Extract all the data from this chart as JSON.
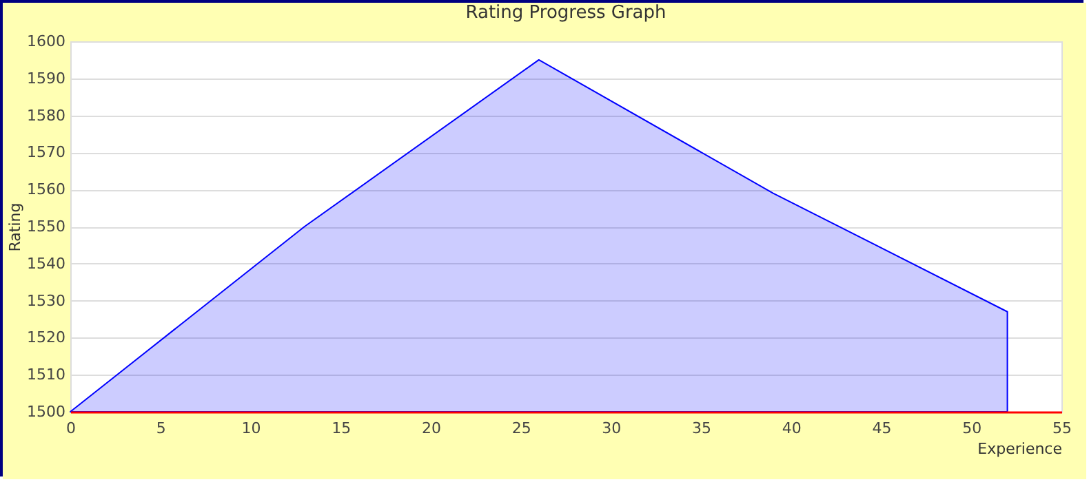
{
  "chart_data": {
    "type": "area",
    "title": "Rating Progress Graph",
    "xlabel": "Experience",
    "ylabel": "Rating",
    "x": [
      0,
      13,
      26,
      39,
      52
    ],
    "series": [
      {
        "color": "#0000ff",
        "values": [
          1500,
          1550,
          1595,
          1559,
          1527
        ]
      }
    ],
    "xlim": [
      0,
      55
    ],
    "xticks": [
      0,
      5,
      10,
      15,
      20,
      25,
      30,
      35,
      40,
      45,
      50,
      55
    ],
    "ylim": [
      1500,
      1600
    ],
    "yticks": [
      1500,
      1510,
      1520,
      1530,
      1540,
      1550,
      1560,
      1570,
      1580,
      1590,
      1600
    ],
    "grid": "y",
    "legend": false
  }
}
